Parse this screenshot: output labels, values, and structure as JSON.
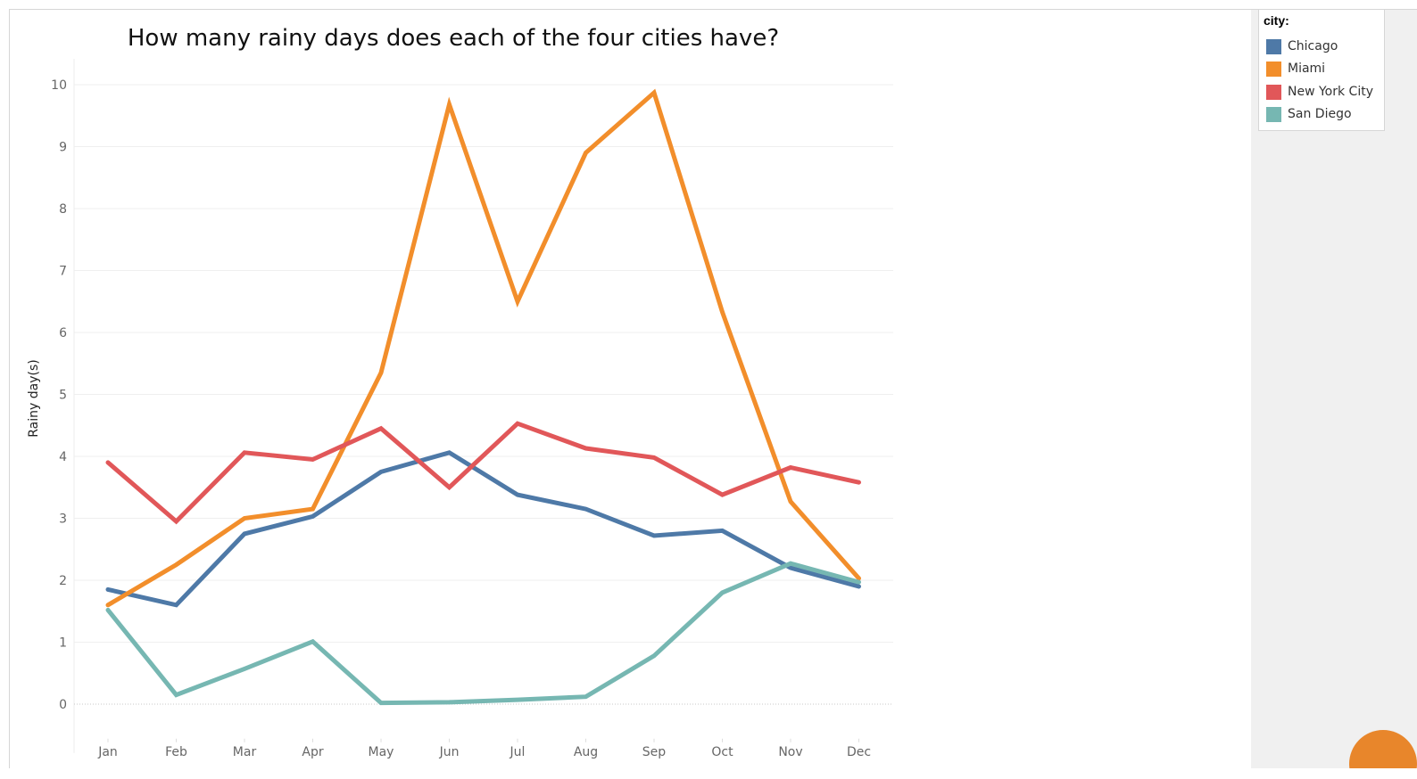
{
  "chart_data": {
    "type": "line",
    "title": "How many rainy days does each of the four cities have?",
    "xlabel": "",
    "ylabel": "Rainy day(s)",
    "categories": [
      "Jan",
      "Feb",
      "Mar",
      "Apr",
      "May",
      "Jun",
      "Jul",
      "Aug",
      "Sep",
      "Oct",
      "Nov",
      "Dec"
    ],
    "ylim": [
      -0.5,
      10.3
    ],
    "yticks": [
      0,
      1,
      2,
      3,
      4,
      5,
      6,
      7,
      8,
      9,
      10
    ],
    "grid": true,
    "legend_position": "right",
    "series": [
      {
        "name": "Chicago",
        "color": "#4e79a7",
        "values": [
          1.85,
          1.6,
          2.75,
          3.03,
          3.75,
          4.06,
          3.38,
          3.15,
          2.72,
          2.8,
          2.2,
          1.9
        ]
      },
      {
        "name": "Miami",
        "color": "#f28e2b",
        "values": [
          1.6,
          2.25,
          3.0,
          3.15,
          5.35,
          9.68,
          6.5,
          8.9,
          9.87,
          6.33,
          3.27,
          2.03
        ]
      },
      {
        "name": "New York City",
        "color": "#e15759",
        "values": [
          3.9,
          2.95,
          4.06,
          3.95,
          4.45,
          3.5,
          4.53,
          4.13,
          3.98,
          3.38,
          3.82,
          3.58
        ]
      },
      {
        "name": "San Diego",
        "color": "#76b7b2",
        "values": [
          1.52,
          0.15,
          0.57,
          1.01,
          0.02,
          0.03,
          0.07,
          0.12,
          0.78,
          1.8,
          2.27,
          1.97
        ]
      }
    ]
  },
  "legend": {
    "title": "city:"
  }
}
